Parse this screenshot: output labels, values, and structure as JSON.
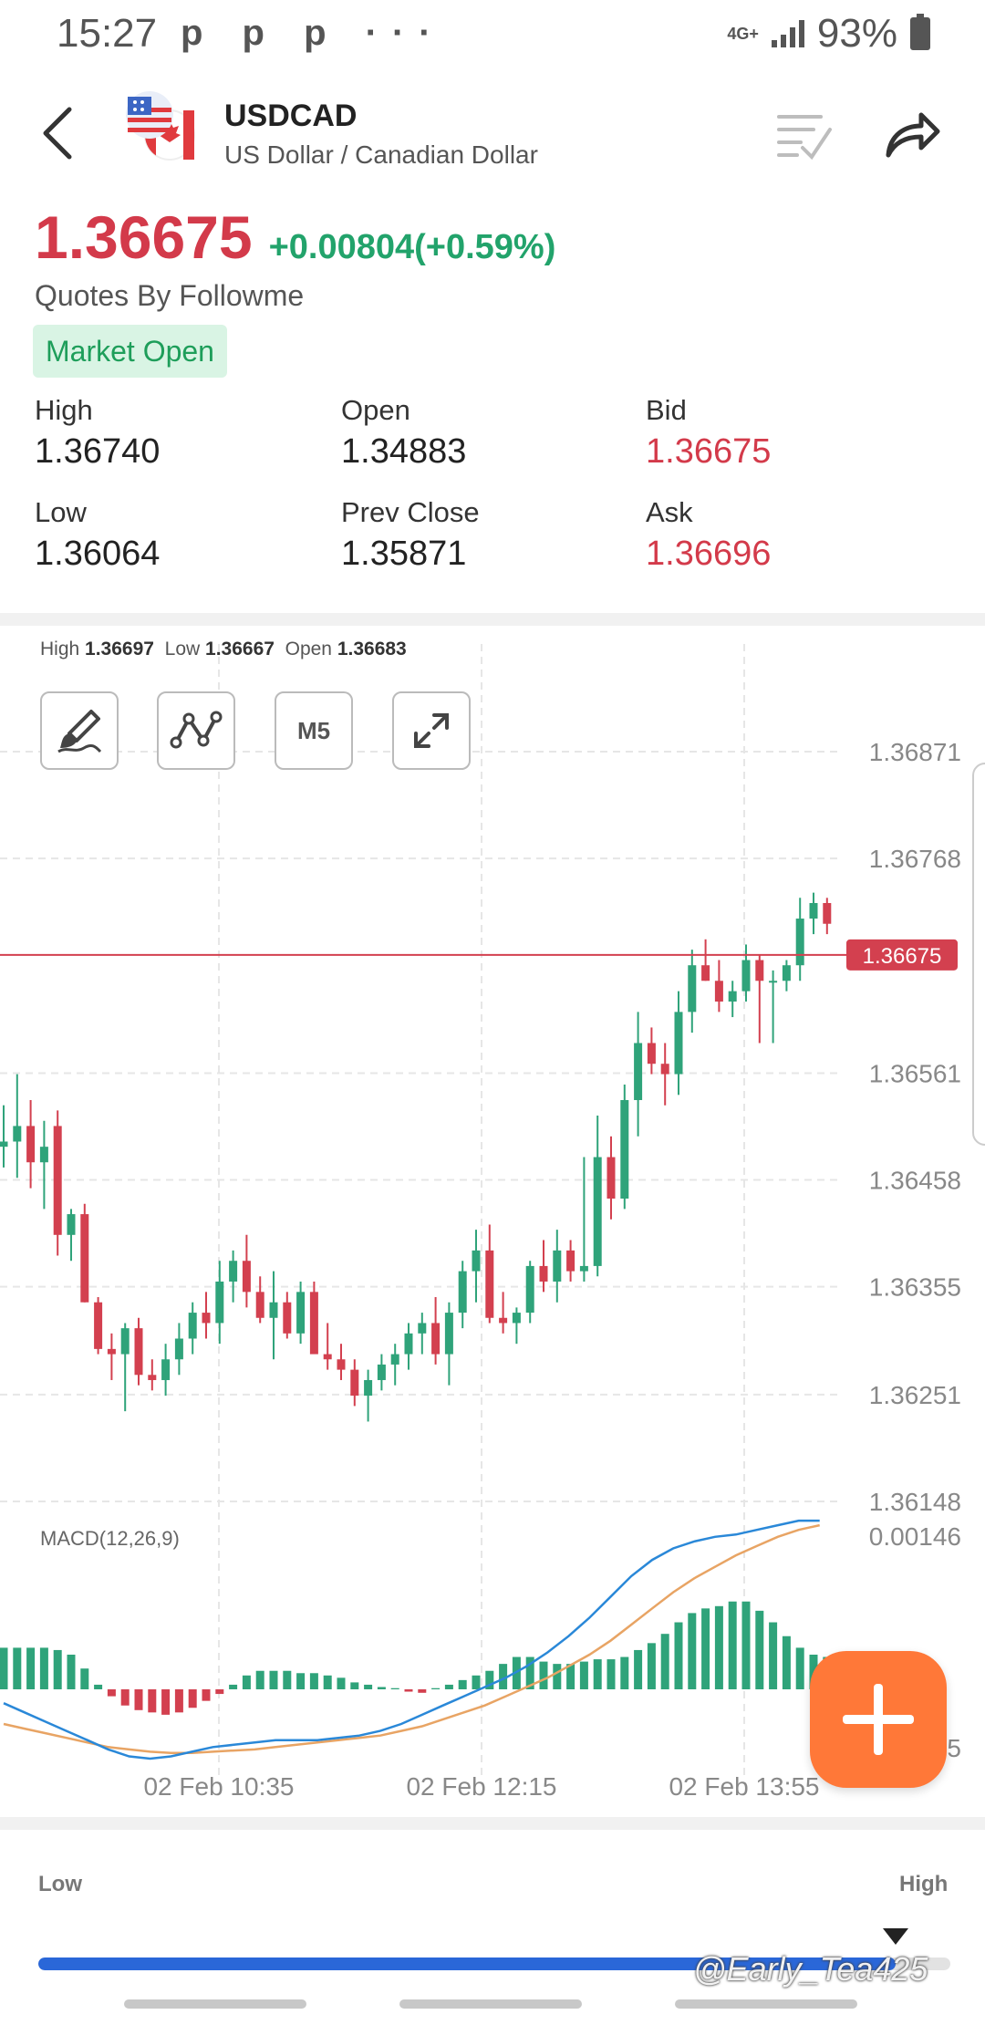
{
  "status_bar": {
    "time": "15:27",
    "notifications": "p p p ···",
    "network": "4G+",
    "battery": "93%"
  },
  "header": {
    "symbol": "USDCAD",
    "name": "US Dollar / Canadian Dollar",
    "icons": [
      "back-icon",
      "us-ca-flag-icon",
      "checklist-icon",
      "share-icon"
    ]
  },
  "quote": {
    "price": "1.36675",
    "change": "+0.00804(+0.59%)",
    "source": "Quotes By Followme",
    "market_status": "Market Open",
    "colors": {
      "down": "#d33a4a",
      "up": "#22a36b"
    }
  },
  "stats": [
    {
      "label": "High",
      "value": "1.36740"
    },
    {
      "label": "Open",
      "value": "1.34883"
    },
    {
      "label": "Bid",
      "value": "1.36675"
    },
    {
      "label": "Low",
      "value": "1.36064"
    },
    {
      "label": "Prev Close",
      "value": "1.35871"
    },
    {
      "label": "Ask",
      "value": "1.36696"
    }
  ],
  "chart": {
    "ohlc_high_label": "High",
    "ohlc_high": "1.36697",
    "ohlc_low_label": "Low",
    "ohlc_low": "1.36667",
    "ohlc_open_label": "Open",
    "ohlc_open": "1.36683",
    "timeframe": "M5",
    "tools": [
      "draw-brush-icon",
      "trendline-icon",
      "M5",
      "expand-icon"
    ],
    "current_price_label": "1.36675",
    "macd_label": "MACD(12,26,9)",
    "macd_top": "0.00146",
    "macd_bottom_partial": "5",
    "bull_color": "#2fa37a",
    "bear_color": "#d3404f"
  },
  "chart_data": {
    "type": "candlestick",
    "y_ticks": [
      "1.36871",
      "1.36768",
      "1.36561",
      "1.36458",
      "1.36355",
      "1.36251",
      "1.36148"
    ],
    "ylim": [
      1.36148,
      1.36871
    ],
    "x_ticks": [
      "02 Feb  10:35",
      "02 Feb  12:15",
      "02 Feb  13:55"
    ],
    "candles": [
      [
        1.3649,
        1.3653,
        1.3647,
        1.36495
      ],
      [
        1.36495,
        1.3656,
        1.3646,
        1.3651
      ],
      [
        1.3651,
        1.36535,
        1.3645,
        1.36475
      ],
      [
        1.36475,
        1.36515,
        1.3643,
        1.3649
      ],
      [
        1.3651,
        1.36525,
        1.36385,
        1.36405
      ],
      [
        1.36405,
        1.3643,
        1.3638,
        1.36425
      ],
      [
        1.36425,
        1.36435,
        1.3634,
        1.3634
      ],
      [
        1.3634,
        1.36345,
        1.3629,
        1.36295
      ],
      [
        1.36295,
        1.3631,
        1.36265,
        1.3629
      ],
      [
        1.3629,
        1.3632,
        1.36235,
        1.36315
      ],
      [
        1.36315,
        1.36325,
        1.3626,
        1.3627
      ],
      [
        1.3627,
        1.36285,
        1.36255,
        1.36265
      ],
      [
        1.36265,
        1.363,
        1.3625,
        1.36285
      ],
      [
        1.36285,
        1.3632,
        1.3627,
        1.36305
      ],
      [
        1.36305,
        1.3634,
        1.3629,
        1.3633
      ],
      [
        1.3633,
        1.3635,
        1.36305,
        1.3632
      ],
      [
        1.3632,
        1.3638,
        1.363,
        1.3636
      ],
      [
        1.3636,
        1.3639,
        1.3634,
        1.3638
      ],
      [
        1.3638,
        1.36405,
        1.36335,
        1.3635
      ],
      [
        1.3635,
        1.36365,
        1.3632,
        1.36325
      ],
      [
        1.36325,
        1.3637,
        1.36285,
        1.3634
      ],
      [
        1.3634,
        1.3635,
        1.36305,
        1.3631
      ],
      [
        1.3631,
        1.3636,
        1.363,
        1.3635
      ],
      [
        1.3635,
        1.3636,
        1.3629,
        1.3629
      ],
      [
        1.3629,
        1.3632,
        1.36275,
        1.36285
      ],
      [
        1.36285,
        1.363,
        1.36265,
        1.36275
      ],
      [
        1.36275,
        1.36285,
        1.3624,
        1.3625
      ],
      [
        1.3625,
        1.36275,
        1.36225,
        1.36265
      ],
      [
        1.36265,
        1.3629,
        1.36255,
        1.3628
      ],
      [
        1.3628,
        1.363,
        1.3626,
        1.3629
      ],
      [
        1.3629,
        1.3632,
        1.36275,
        1.3631
      ],
      [
        1.3631,
        1.3633,
        1.3629,
        1.3632
      ],
      [
        1.3632,
        1.36345,
        1.3628,
        1.3629
      ],
      [
        1.3629,
        1.3634,
        1.3626,
        1.3633
      ],
      [
        1.3633,
        1.3638,
        1.36315,
        1.3637
      ],
      [
        1.3637,
        1.3641,
        1.3634,
        1.3639
      ],
      [
        1.3639,
        1.36415,
        1.3632,
        1.36325
      ],
      [
        1.36325,
        1.3635,
        1.3631,
        1.3632
      ],
      [
        1.3632,
        1.36335,
        1.363,
        1.3633
      ],
      [
        1.3633,
        1.3638,
        1.3632,
        1.36375
      ],
      [
        1.36375,
        1.364,
        1.3635,
        1.3636
      ],
      [
        1.3636,
        1.3641,
        1.3634,
        1.3639
      ],
      [
        1.3639,
        1.364,
        1.3636,
        1.3637
      ],
      [
        1.3637,
        1.3648,
        1.3636,
        1.36375
      ],
      [
        1.36375,
        1.3652,
        1.36365,
        1.3648
      ],
      [
        1.3648,
        1.365,
        1.3642,
        1.3644
      ],
      [
        1.3644,
        1.3655,
        1.3643,
        1.36535
      ],
      [
        1.36535,
        1.3662,
        1.365,
        1.3659
      ],
      [
        1.3659,
        1.36605,
        1.3656,
        1.3657
      ],
      [
        1.3657,
        1.3659,
        1.3653,
        1.3656
      ],
      [
        1.3656,
        1.3664,
        1.3654,
        1.3662
      ],
      [
        1.3662,
        1.3668,
        1.366,
        1.36665
      ],
      [
        1.36665,
        1.3669,
        1.3665,
        1.3665
      ],
      [
        1.3665,
        1.3667,
        1.3662,
        1.3663
      ],
      [
        1.3663,
        1.3665,
        1.36615,
        1.3664
      ],
      [
        1.3664,
        1.36685,
        1.3663,
        1.3667
      ],
      [
        1.3667,
        1.36675,
        1.3659,
        1.3665
      ],
      [
        1.3665,
        1.3666,
        1.3659,
        1.3665
      ],
      [
        1.3665,
        1.3667,
        1.3664,
        1.36665
      ],
      [
        1.36665,
        1.3673,
        1.3665,
        1.3671
      ],
      [
        1.3671,
        1.36735,
        1.36695,
        1.36725
      ],
      [
        1.36725,
        1.3673,
        1.36695,
        1.36705
      ]
    ],
    "current_price": 1.36675,
    "macd_hist": [
      0.00036,
      0.00036,
      0.00036,
      0.00036,
      0.00034,
      0.0003,
      0.00018,
      4e-05,
      -6e-05,
      -0.00014,
      -0.00018,
      -0.0002,
      -0.00022,
      -0.0002,
      -0.00016,
      -0.0001,
      -4e-05,
      4e-05,
      0.00012,
      0.00016,
      0.00016,
      0.00016,
      0.00014,
      0.00014,
      0.00012,
      0.0001,
      6e-05,
      4e-05,
      2e-05,
      1e-05,
      -2e-05,
      -3e-05,
      1e-05,
      4e-05,
      8e-05,
      0.00012,
      0.00016,
      0.00022,
      0.00028,
      0.00028,
      0.00024,
      0.00022,
      0.00022,
      0.00024,
      0.00026,
      0.00026,
      0.00028,
      0.00034,
      0.0004,
      0.00048,
      0.00058,
      0.00066,
      0.0007,
      0.00072,
      0.00076,
      0.00076,
      0.00068,
      0.00058,
      0.00046,
      0.00036,
      0.0003,
      0.00028,
      0.00026
    ],
    "macd_line": [
      -0.00012,
      -0.0002,
      -0.00028,
      -0.00036,
      -0.00044,
      -0.00052,
      -0.00058,
      -0.0006,
      -0.00058,
      -0.00054,
      -0.0005,
      -0.00048,
      -0.00046,
      -0.00044,
      -0.00044,
      -0.00044,
      -0.00042,
      -0.0004,
      -0.00036,
      -0.0003,
      -0.00022,
      -0.00014,
      -6e-05,
      2e-05,
      0.0001,
      0.0002,
      0.00032,
      0.00046,
      0.00062,
      0.0008,
      0.00098,
      0.00112,
      0.00122,
      0.00128,
      0.00132,
      0.00134,
      0.00138,
      0.00142,
      0.00146,
      0.00146
    ],
    "signal_line": [
      -0.0003,
      -0.00034,
      -0.00038,
      -0.00042,
      -0.00046,
      -0.0005,
      -0.00052,
      -0.00054,
      -0.00055,
      -0.00055,
      -0.00054,
      -0.00053,
      -0.00052,
      -0.0005,
      -0.00048,
      -0.00046,
      -0.00044,
      -0.00042,
      -0.0004,
      -0.00036,
      -0.00032,
      -0.00026,
      -0.0002,
      -0.00014,
      -6e-05,
      2e-05,
      0.0001,
      0.0002,
      0.0003,
      0.00042,
      0.00056,
      0.0007,
      0.00084,
      0.00096,
      0.00106,
      0.00116,
      0.00124,
      0.00132,
      0.00138,
      0.00142
    ]
  },
  "range": {
    "low_label": "Low",
    "high_label": "High",
    "position": 0.94
  },
  "watermark": "@Early_Tea425"
}
